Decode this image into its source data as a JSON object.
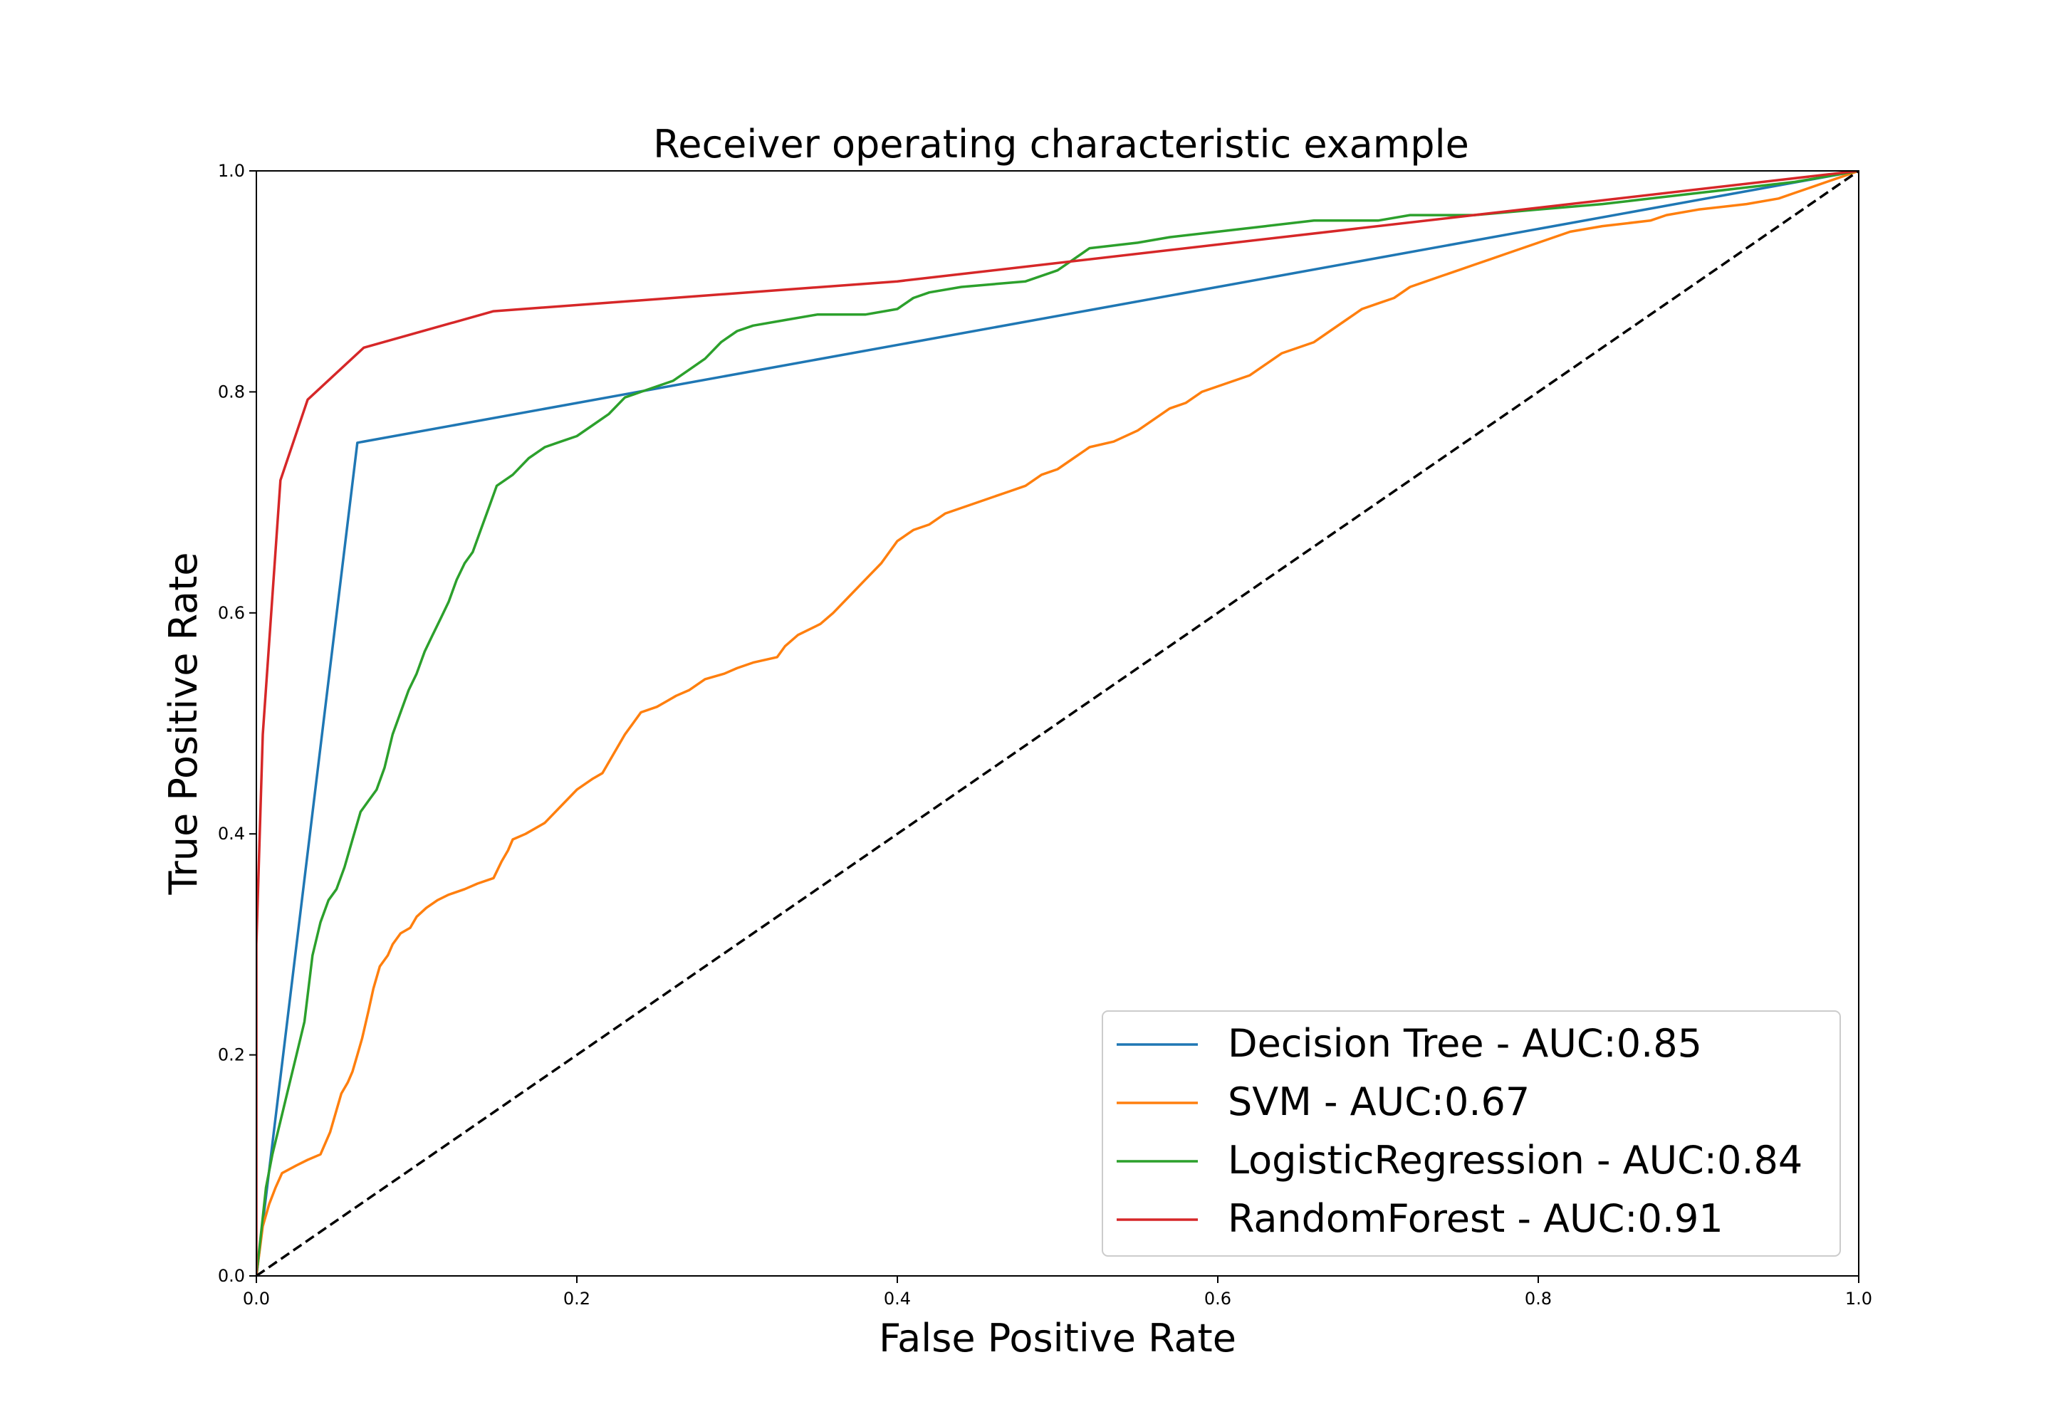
{
  "chart_data": {
    "type": "line",
    "title": "Receiver operating characteristic example",
    "xlabel": "False Positive Rate",
    "ylabel": "True Positive Rate",
    "xlim": [
      0.0,
      1.0
    ],
    "ylim": [
      0.0,
      1.0
    ],
    "xticks": [
      "0.0",
      "0.2",
      "0.4",
      "0.6",
      "0.8",
      "1.0"
    ],
    "yticks": [
      "0.0",
      "0.2",
      "0.4",
      "0.6",
      "0.8",
      "1.0"
    ],
    "grid": false,
    "legend_position": "lower right",
    "series": [
      {
        "name": "Decision Tree - AUC:0.85",
        "color": "#1f77b4",
        "x": [
          0.0,
          0.063,
          1.0
        ],
        "y": [
          0.0,
          0.754,
          1.0
        ]
      },
      {
        "name": "SVM - AUC:0.67",
        "color": "#ff7f0e",
        "x": [
          0.0,
          0.004,
          0.008,
          0.012,
          0.016,
          0.025,
          0.032,
          0.04,
          0.046,
          0.05,
          0.053,
          0.057,
          0.06,
          0.063,
          0.066,
          0.07,
          0.073,
          0.077,
          0.082,
          0.085,
          0.09,
          0.096,
          0.1,
          0.106,
          0.113,
          0.12,
          0.13,
          0.138,
          0.148,
          0.153,
          0.157,
          0.16,
          0.168,
          0.18,
          0.19,
          0.2,
          0.21,
          0.216,
          0.22,
          0.224,
          0.23,
          0.235,
          0.24,
          0.25,
          0.256,
          0.262,
          0.27,
          0.28,
          0.292,
          0.3,
          0.31,
          0.325,
          0.33,
          0.338,
          0.345,
          0.352,
          0.36,
          0.37,
          0.38,
          0.39,
          0.395,
          0.4,
          0.41,
          0.42,
          0.43,
          0.44,
          0.45,
          0.47,
          0.48,
          0.49,
          0.5,
          0.51,
          0.52,
          0.535,
          0.55,
          0.56,
          0.57,
          0.58,
          0.59,
          0.6,
          0.61,
          0.62,
          0.63,
          0.64,
          0.66,
          0.67,
          0.68,
          0.69,
          0.7,
          0.71,
          0.72,
          0.73,
          0.74,
          0.75,
          0.76,
          0.77,
          0.78,
          0.79,
          0.8,
          0.81,
          0.82,
          0.84,
          0.87,
          0.88,
          0.9,
          0.93,
          0.95,
          0.96,
          0.97,
          0.98,
          0.99,
          1.0
        ],
        "y": [
          0.0,
          0.045,
          0.065,
          0.08,
          0.093,
          0.1,
          0.105,
          0.11,
          0.13,
          0.15,
          0.165,
          0.175,
          0.185,
          0.2,
          0.215,
          0.24,
          0.26,
          0.28,
          0.29,
          0.3,
          0.31,
          0.315,
          0.325,
          0.333,
          0.34,
          0.345,
          0.35,
          0.355,
          0.36,
          0.375,
          0.385,
          0.395,
          0.4,
          0.41,
          0.425,
          0.44,
          0.45,
          0.455,
          0.465,
          0.475,
          0.49,
          0.5,
          0.51,
          0.515,
          0.52,
          0.525,
          0.53,
          0.54,
          0.545,
          0.55,
          0.555,
          0.56,
          0.57,
          0.58,
          0.585,
          0.59,
          0.6,
          0.615,
          0.63,
          0.645,
          0.655,
          0.665,
          0.675,
          0.68,
          0.69,
          0.695,
          0.7,
          0.71,
          0.715,
          0.725,
          0.73,
          0.74,
          0.75,
          0.755,
          0.765,
          0.775,
          0.785,
          0.79,
          0.8,
          0.805,
          0.81,
          0.815,
          0.825,
          0.835,
          0.845,
          0.855,
          0.865,
          0.875,
          0.88,
          0.885,
          0.895,
          0.9,
          0.905,
          0.91,
          0.915,
          0.92,
          0.925,
          0.93,
          0.935,
          0.94,
          0.945,
          0.95,
          0.955,
          0.96,
          0.965,
          0.97,
          0.975,
          0.98,
          0.985,
          0.99,
          0.995,
          1.0
        ]
      },
      {
        "name": "LogisticRegression - AUC:0.84",
        "color": "#2ca02c",
        "x": [
          0.0,
          0.003,
          0.006,
          0.01,
          0.015,
          0.02,
          0.025,
          0.03,
          0.035,
          0.04,
          0.045,
          0.05,
          0.055,
          0.06,
          0.065,
          0.07,
          0.075,
          0.08,
          0.085,
          0.09,
          0.095,
          0.1,
          0.105,
          0.11,
          0.115,
          0.12,
          0.125,
          0.13,
          0.135,
          0.14,
          0.145,
          0.15,
          0.16,
          0.17,
          0.18,
          0.19,
          0.2,
          0.21,
          0.22,
          0.23,
          0.24,
          0.25,
          0.26,
          0.27,
          0.28,
          0.29,
          0.3,
          0.31,
          0.33,
          0.35,
          0.38,
          0.4,
          0.41,
          0.42,
          0.44,
          0.48,
          0.5,
          0.51,
          0.52,
          0.55,
          0.57,
          0.6,
          0.63,
          0.66,
          0.7,
          0.72,
          0.76,
          0.8,
          0.84,
          0.87,
          0.9,
          0.93,
          0.96,
          0.98,
          1.0
        ],
        "y": [
          0.0,
          0.04,
          0.08,
          0.11,
          0.14,
          0.17,
          0.2,
          0.23,
          0.29,
          0.32,
          0.34,
          0.35,
          0.37,
          0.395,
          0.42,
          0.43,
          0.44,
          0.46,
          0.49,
          0.51,
          0.53,
          0.545,
          0.565,
          0.58,
          0.595,
          0.61,
          0.63,
          0.645,
          0.655,
          0.675,
          0.695,
          0.715,
          0.725,
          0.74,
          0.75,
          0.755,
          0.76,
          0.77,
          0.78,
          0.795,
          0.8,
          0.805,
          0.81,
          0.82,
          0.83,
          0.845,
          0.855,
          0.86,
          0.865,
          0.87,
          0.87,
          0.875,
          0.885,
          0.89,
          0.895,
          0.9,
          0.91,
          0.92,
          0.93,
          0.935,
          0.94,
          0.945,
          0.95,
          0.955,
          0.955,
          0.96,
          0.96,
          0.965,
          0.97,
          0.975,
          0.98,
          0.985,
          0.99,
          0.995,
          1.0
        ]
      },
      {
        "name": "RandomForest - AUC:0.91",
        "color": "#d62728",
        "x": [
          0.0,
          0.0,
          0.004,
          0.015,
          0.032,
          0.067,
          0.148,
          0.4,
          1.0
        ],
        "y": [
          0.0,
          0.3,
          0.49,
          0.72,
          0.793,
          0.84,
          0.873,
          0.9,
          1.0
        ]
      },
      {
        "name": "",
        "color": "#000000",
        "dashed": true,
        "x": [
          0.0,
          1.0
        ],
        "y": [
          0.0,
          1.0
        ]
      }
    ]
  }
}
